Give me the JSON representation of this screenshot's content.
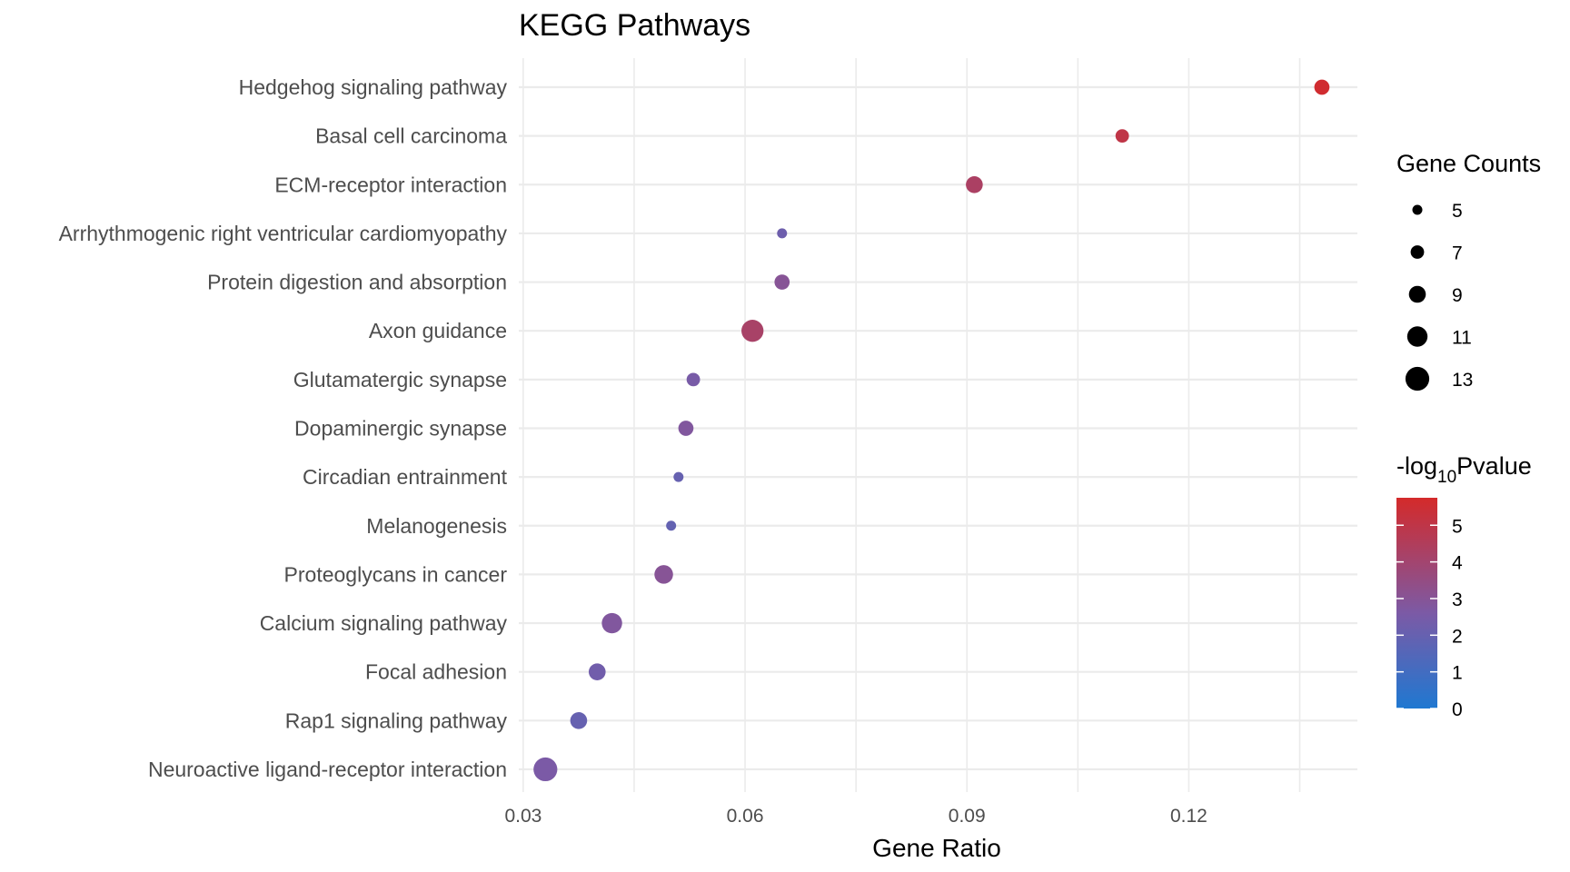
{
  "chart_data": {
    "type": "scatter",
    "title": "KEGG Pathways",
    "xlabel": "Gene Ratio",
    "ylabel": "",
    "xlim": [
      0.0294,
      0.1428
    ],
    "xticks": [
      0.03,
      0.06,
      0.09,
      0.12
    ],
    "xtick_labels": [
      "0.03",
      "0.06",
      "0.09",
      "0.12"
    ],
    "grid": true,
    "points": [
      {
        "pathway": "Hedgehog signaling pathway",
        "gene_ratio": 0.138,
        "count": 8,
        "neg_log10_p": 5.6
      },
      {
        "pathway": "Basal cell carcinoma",
        "gene_ratio": 0.111,
        "count": 7,
        "neg_log10_p": 5.0
      },
      {
        "pathway": "ECM-receptor interaction",
        "gene_ratio": 0.091,
        "count": 9,
        "neg_log10_p": 4.3
      },
      {
        "pathway": "Arrhythmogenic right ventricular cardiomyopathy",
        "gene_ratio": 0.065,
        "count": 5,
        "neg_log10_p": 2.2
      },
      {
        "pathway": "Protein digestion and absorption",
        "gene_ratio": 0.065,
        "count": 8,
        "neg_log10_p": 3.0
      },
      {
        "pathway": "Axon guidance",
        "gene_ratio": 0.061,
        "count": 12,
        "neg_log10_p": 4.2
      },
      {
        "pathway": "Glutamatergic synapse",
        "gene_ratio": 0.053,
        "count": 7,
        "neg_log10_p": 2.5
      },
      {
        "pathway": "Dopaminergic synapse",
        "gene_ratio": 0.052,
        "count": 8,
        "neg_log10_p": 2.8
      },
      {
        "pathway": "Circadian entrainment",
        "gene_ratio": 0.051,
        "count": 5,
        "neg_log10_p": 2.0
      },
      {
        "pathway": "Melanogenesis",
        "gene_ratio": 0.05,
        "count": 5,
        "neg_log10_p": 1.9
      },
      {
        "pathway": "Proteoglycans in cancer",
        "gene_ratio": 0.049,
        "count": 10,
        "neg_log10_p": 3.0
      },
      {
        "pathway": "Calcium signaling pathway",
        "gene_ratio": 0.042,
        "count": 11,
        "neg_log10_p": 2.8
      },
      {
        "pathway": "Focal adhesion",
        "gene_ratio": 0.04,
        "count": 9,
        "neg_log10_p": 2.3
      },
      {
        "pathway": "Rap1 signaling pathway",
        "gene_ratio": 0.0375,
        "count": 9,
        "neg_log10_p": 2.0
      },
      {
        "pathway": "Neuroactive ligand-receptor interaction",
        "gene_ratio": 0.033,
        "count": 13,
        "neg_log10_p": 2.6
      }
    ],
    "size_legend": {
      "title": "Gene Counts",
      "values": [
        5,
        7,
        9,
        11,
        13
      ],
      "labels": [
        "5",
        "7",
        "9",
        "11",
        "13"
      ]
    },
    "color_legend": {
      "title_prefix": "-log",
      "title_subscript": "10",
      "title_suffix": "Pvalue",
      "range": [
        0,
        5.75
      ],
      "ticks": [
        0,
        1,
        2,
        3,
        4,
        5
      ],
      "tick_labels": [
        "0",
        "1",
        "2",
        "3",
        "4",
        "5"
      ],
      "low_color": "#1f78d1",
      "mid_color": "#7b5aa6",
      "high_color": "#d42a2a"
    },
    "grid_color": "#ebebeb",
    "legend_position": "right"
  }
}
